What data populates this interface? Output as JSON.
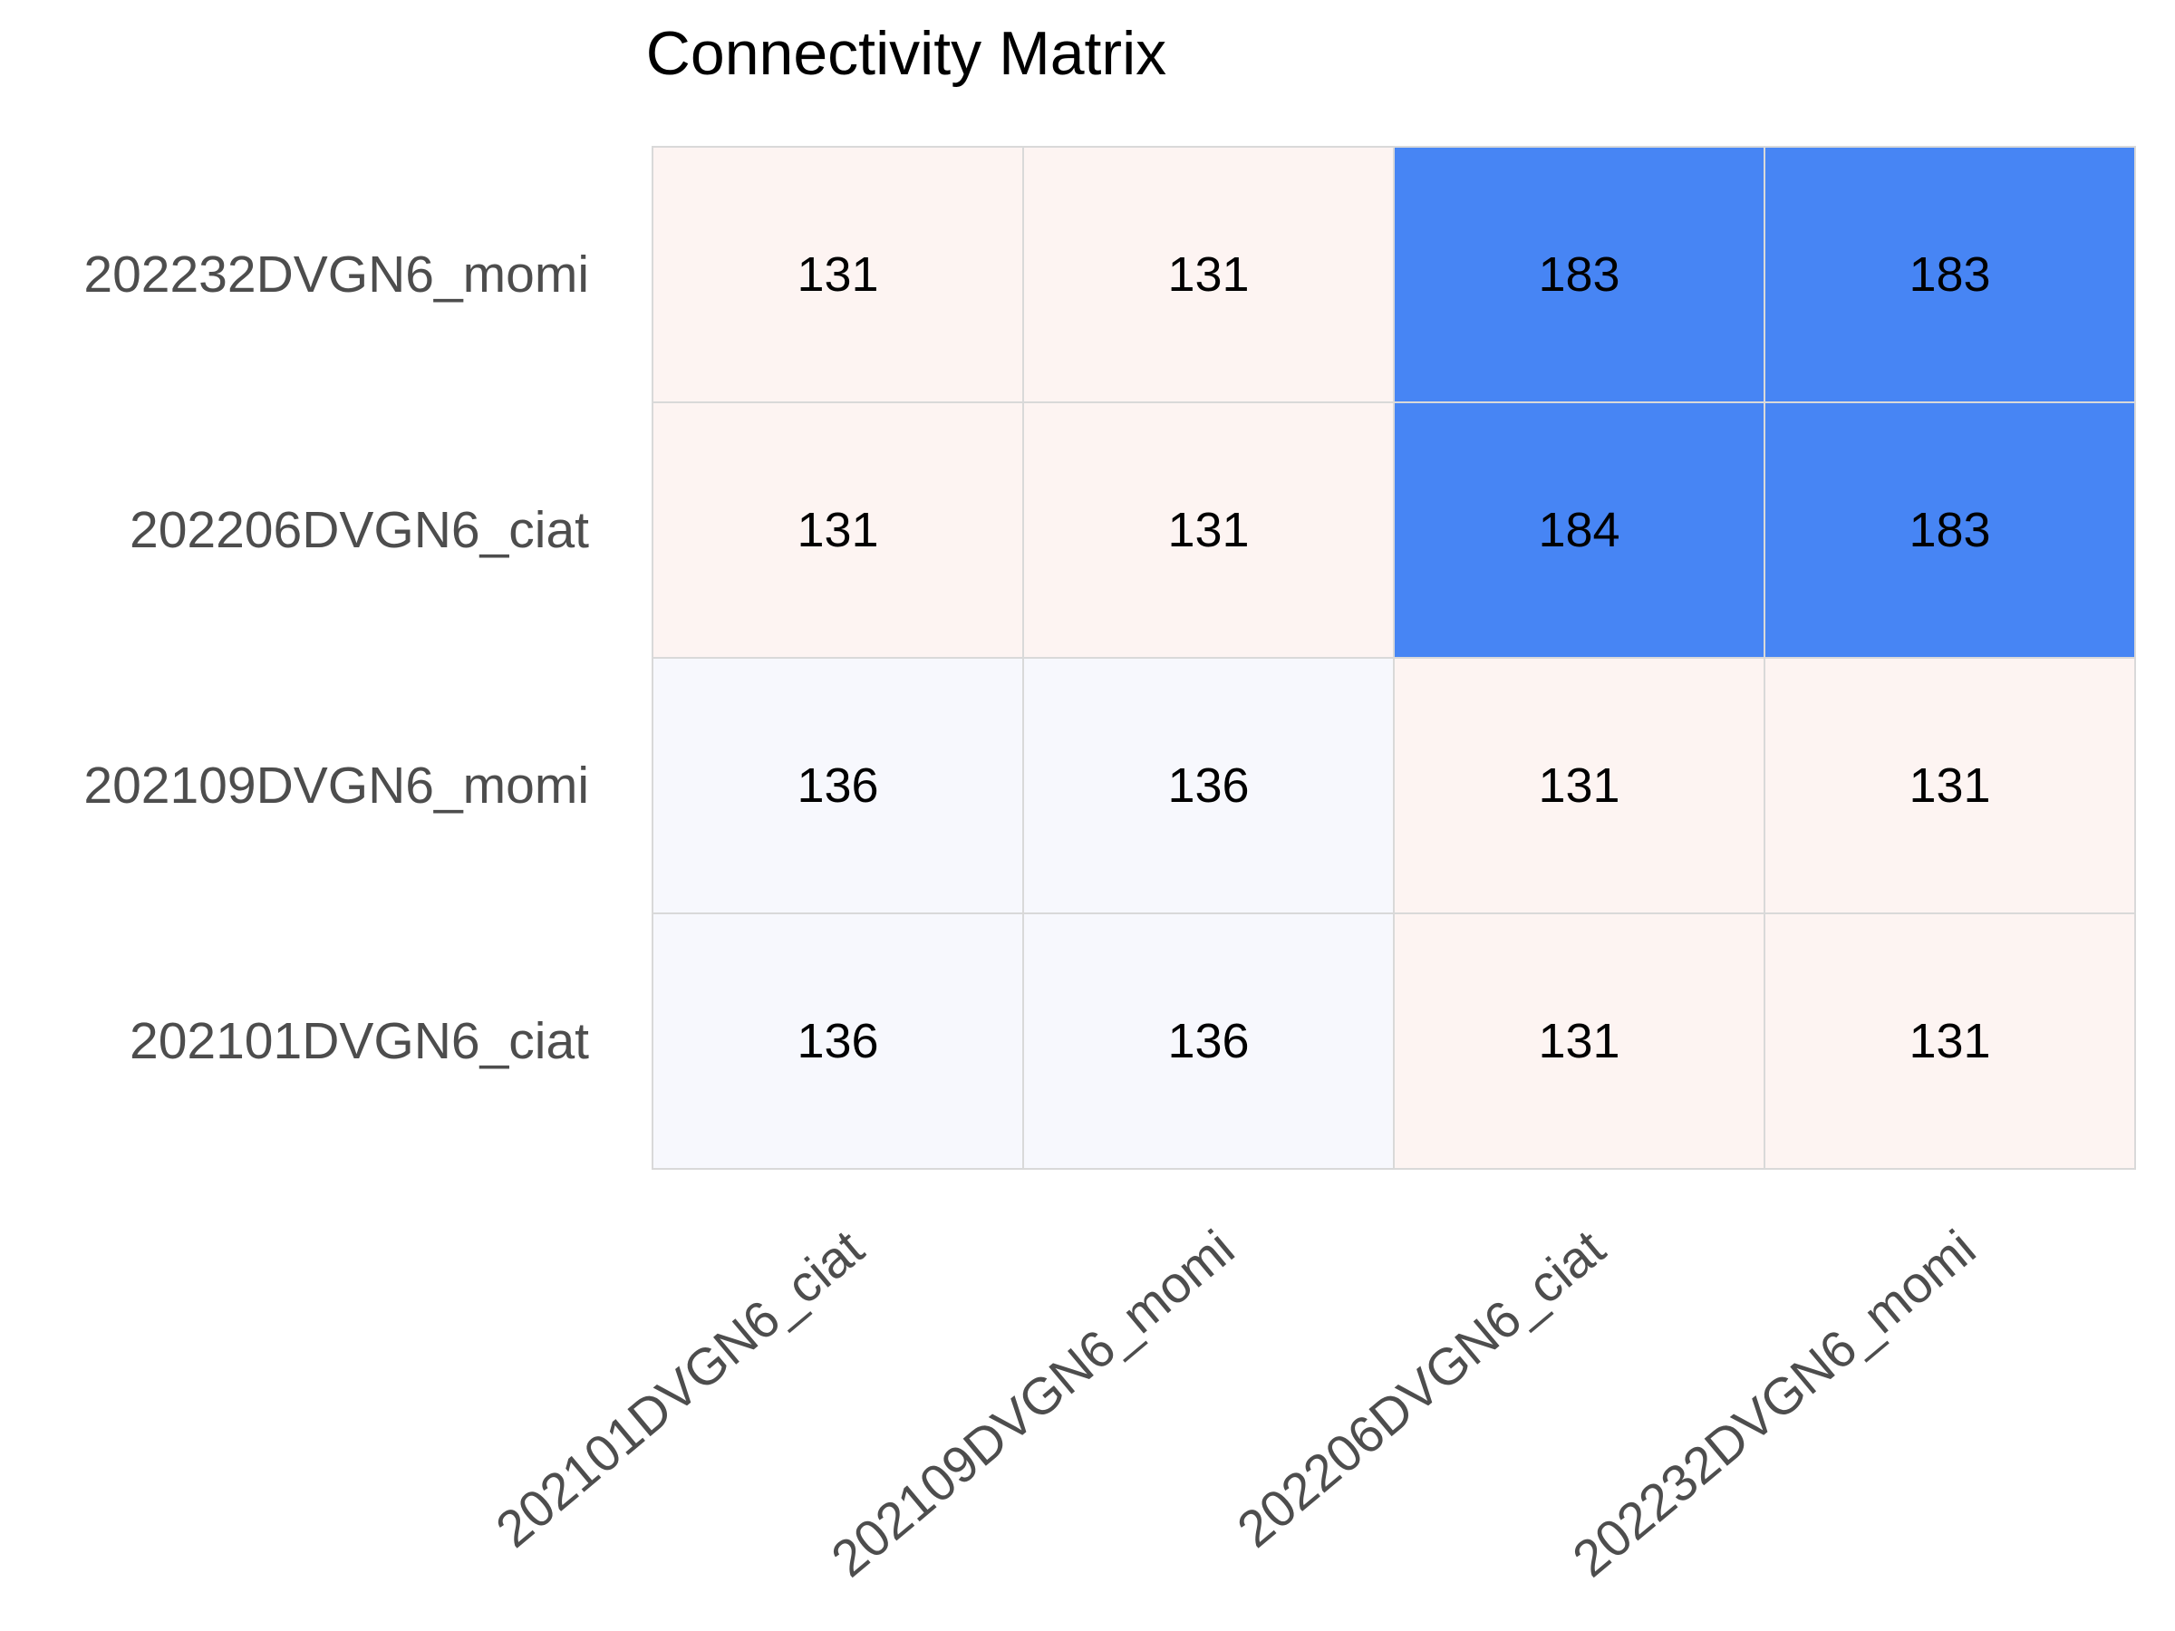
{
  "chart_data": {
    "type": "heatmap",
    "title": "Connectivity Matrix",
    "xlabel": "",
    "ylabel": "",
    "x_categories": [
      "202101DVGN6_ciat",
      "202109DVGN6_momi",
      "202206DVGN6_ciat",
      "202232DVGN6_momi"
    ],
    "y_categories": [
      "202232DVGN6_momi",
      "202206DVGN6_ciat",
      "202109DVGN6_momi",
      "202101DVGN6_ciat"
    ],
    "values": [
      [
        131,
        131,
        183,
        183
      ],
      [
        131,
        131,
        184,
        183
      ],
      [
        136,
        136,
        131,
        131
      ],
      [
        136,
        136,
        131,
        131
      ]
    ],
    "grid": true,
    "colorbar": false
  },
  "colors": {
    "high": "#4785f4",
    "mid": "#fdf4f2",
    "low": "#f7f8fd",
    "grid_line": "#d9d9d9",
    "tick_text": "#4d4d4d",
    "title_text": "#000000"
  }
}
